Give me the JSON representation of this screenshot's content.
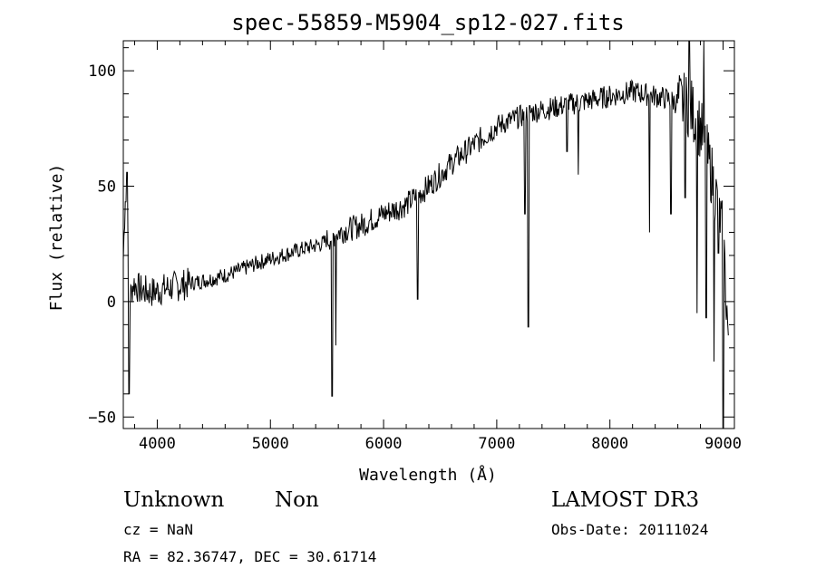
{
  "chart_data": {
    "type": "line",
    "title": "spec-55859-M5904_sp12-027.fits",
    "xlabel": "Wavelength (Å)",
    "ylabel": "Flux (relative)",
    "xlim": [
      3700,
      9100
    ],
    "ylim": [
      -55,
      113
    ],
    "xticks": [
      4000,
      5000,
      6000,
      7000,
      8000,
      9000
    ],
    "yticks": [
      -50,
      0,
      50,
      100
    ],
    "xtick_labels": [
      "4000",
      "5000",
      "6000",
      "7000",
      "8000",
      "9000"
    ],
    "ytick_labels": [
      "−50",
      "0",
      "50",
      "100"
    ],
    "grid": false,
    "series": [
      {
        "color": "#000000",
        "x": [
          3700,
          3720,
          3740,
          3760,
          3790,
          3850,
          3950,
          4100,
          4300,
          4500,
          4700,
          4900,
          5100,
          5300,
          5450,
          5600,
          5800,
          6000,
          6100,
          6200,
          6300,
          6400,
          6500,
          6600,
          6700,
          6800,
          6900,
          7000,
          7100,
          7200,
          7300,
          7400,
          7500,
          7600,
          7700,
          7800,
          7900,
          8000,
          8100,
          8200,
          8300,
          8400,
          8500,
          8600,
          8700,
          8800,
          8900,
          9000,
          9050
        ],
        "y": [
          18,
          50,
          20,
          2,
          8,
          5,
          4,
          6,
          8,
          10,
          13,
          17,
          20,
          23,
          25,
          30,
          33,
          38,
          40,
          42,
          46,
          50,
          55,
          60,
          64,
          68,
          72,
          76,
          78,
          80,
          82,
          83,
          84,
          85,
          86,
          87,
          88,
          89,
          90,
          91,
          90,
          89,
          88,
          86,
          85,
          75,
          55,
          30,
          -20
        ],
        "features": [
          {
            "x": 3735,
            "y": 56
          },
          {
            "x": 3750,
            "y": -40
          },
          {
            "x": 5545,
            "y": -41
          },
          {
            "x": 5578,
            "y": -19
          },
          {
            "x": 6300,
            "y": 1
          },
          {
            "x": 7250,
            "y": 38
          },
          {
            "x": 7280,
            "y": -11
          },
          {
            "x": 7620,
            "y": 65
          },
          {
            "x": 7720,
            "y": 55
          },
          {
            "x": 8350,
            "y": 30
          },
          {
            "x": 8540,
            "y": 38
          },
          {
            "x": 8665,
            "y": 45
          },
          {
            "x": 8700,
            "y": 113
          },
          {
            "x": 8770,
            "y": -5
          },
          {
            "x": 8830,
            "y": 113
          },
          {
            "x": 8850,
            "y": -7
          },
          {
            "x": 8920,
            "y": -26
          },
          {
            "x": 8960,
            "y": 21
          },
          {
            "x": 9000,
            "y": -55
          }
        ]
      }
    ]
  },
  "info": {
    "object_class": "Unknown",
    "object_subclass": "Non",
    "survey": "LAMOST DR3",
    "cz": "cz = NaN",
    "obs_date": "Obs-Date: 20111024",
    "coords": "RA =  82.36747, DEC =  30.61714"
  }
}
